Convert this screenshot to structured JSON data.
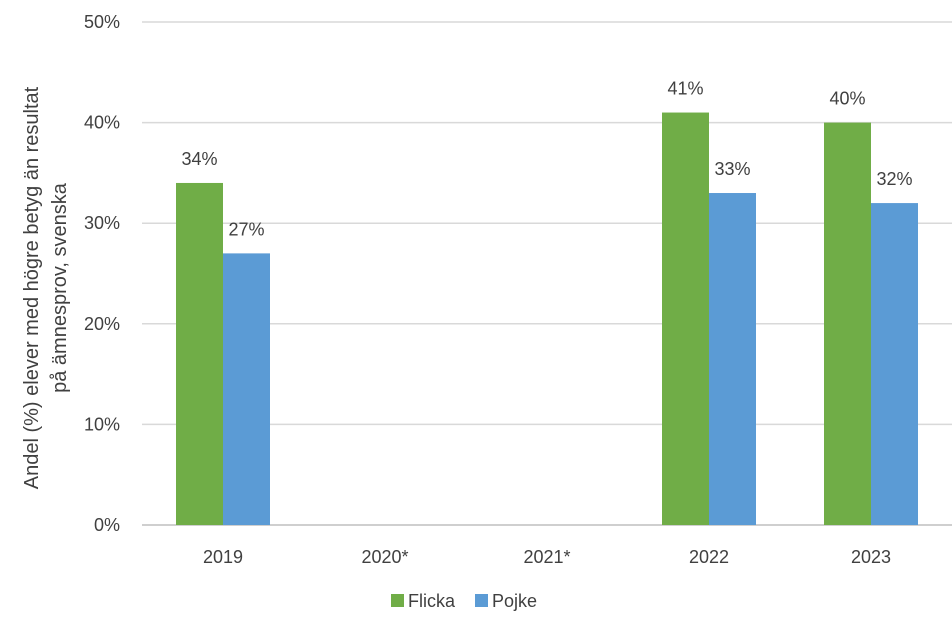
{
  "chart_data": {
    "type": "bar",
    "categories": [
      "2019",
      "2020*",
      "2021*",
      "2022",
      "2023"
    ],
    "series": [
      {
        "name": "Flicka",
        "color": "#70ad47",
        "values": [
          34,
          null,
          null,
          41,
          40
        ],
        "labels": [
          "34%",
          null,
          null,
          "41%",
          "40%"
        ]
      },
      {
        "name": "Pojke",
        "color": "#5b9bd5",
        "values": [
          27,
          null,
          null,
          33,
          32
        ],
        "labels": [
          "27%",
          null,
          null,
          "33%",
          "32%"
        ]
      }
    ],
    "ylabel_lines": [
      "Andel (%) elever med högre betyg än resultat",
      "på ämnesprov, svenska"
    ],
    "ylim": [
      0,
      50
    ],
    "y_ticks": [
      "0%",
      "10%",
      "20%",
      "30%",
      "40%",
      "50%"
    ],
    "grid": true,
    "legend_position": "bottom"
  }
}
